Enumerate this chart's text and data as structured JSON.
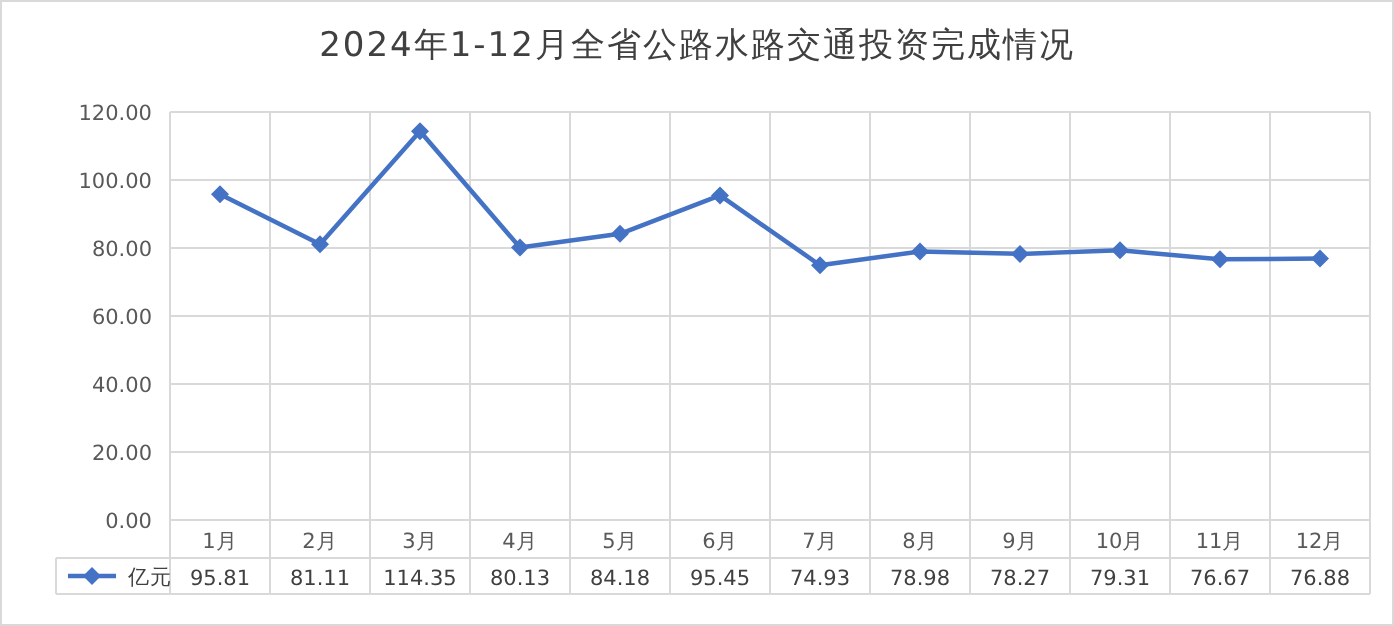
{
  "chart_data": {
    "type": "line",
    "title": "2024年1-12月全省公路水路交通投资完成情况",
    "categories": [
      "1月",
      "2月",
      "3月",
      "4月",
      "5月",
      "6月",
      "7月",
      "8月",
      "9月",
      "10月",
      "11月",
      "12月"
    ],
    "series": [
      {
        "name": "亿元",
        "color": "#4472c4",
        "values": [
          95.81,
          81.11,
          114.35,
          80.13,
          84.18,
          95.45,
          74.93,
          78.98,
          78.27,
          79.31,
          76.67,
          76.88
        ]
      }
    ],
    "ylim": [
      0,
      120
    ],
    "yticks": [
      {
        "value": 0,
        "label": "0.00"
      },
      {
        "value": 20,
        "label": "20.00"
      },
      {
        "value": 40,
        "label": "40.00"
      },
      {
        "value": 60,
        "label": "60.00"
      },
      {
        "value": 80,
        "label": "80.00"
      },
      {
        "value": 100,
        "label": "100.00"
      },
      {
        "value": 120,
        "label": "120.00"
      }
    ],
    "grid": true,
    "legend": "bottom left",
    "marker": "diamond",
    "line_style": "solid",
    "data_labels": true
  }
}
